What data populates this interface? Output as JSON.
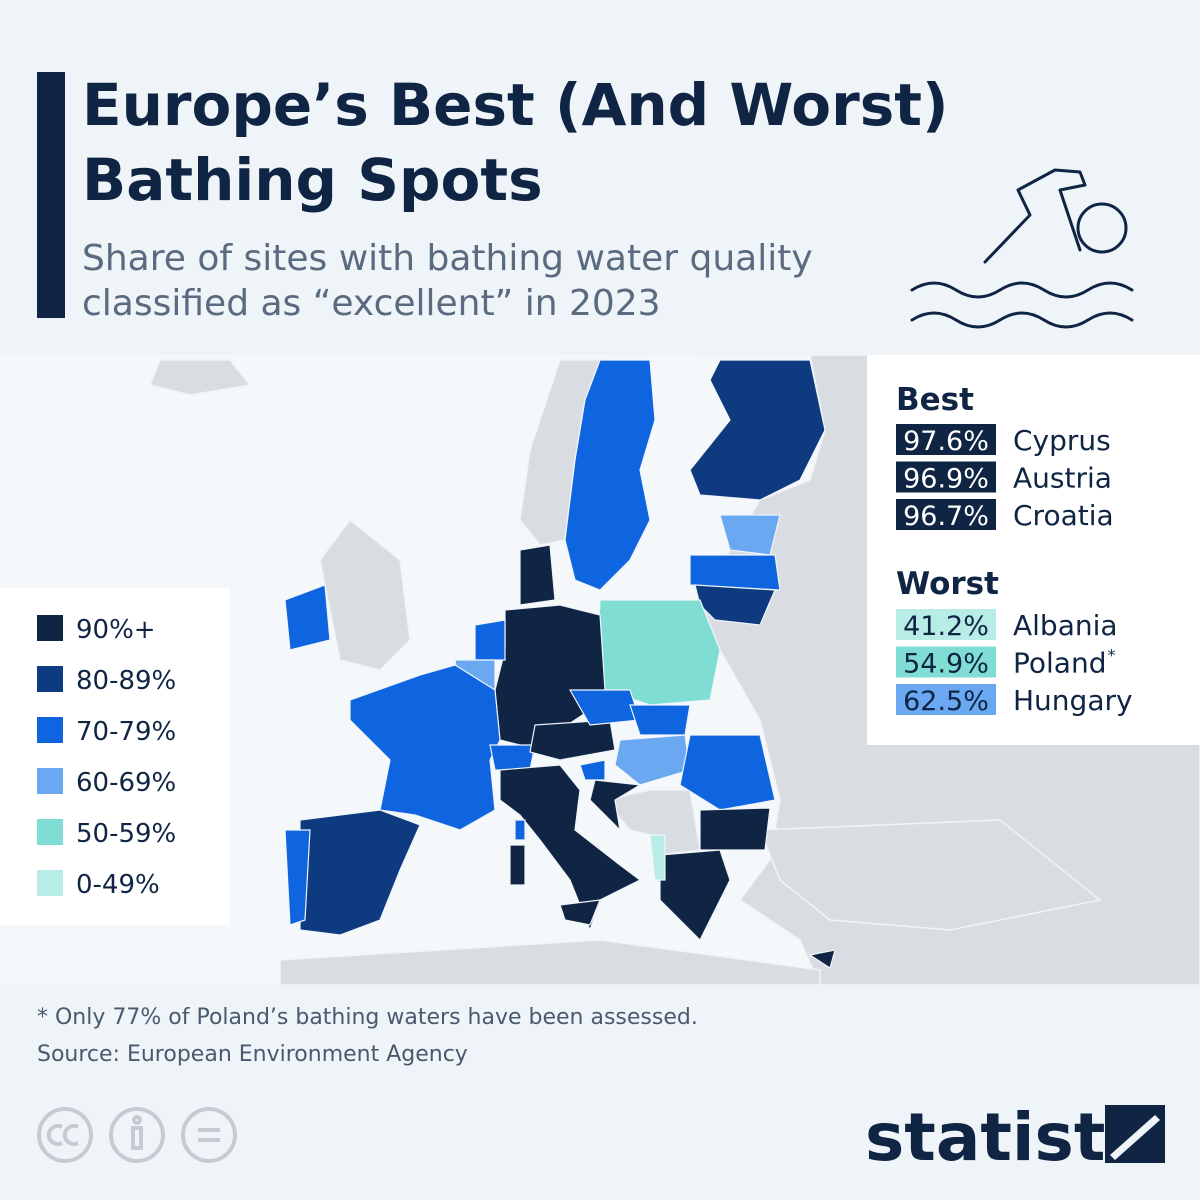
{
  "header": {
    "title_lines": [
      "Europe’s Best (And Worst)",
      "Bathing Spots"
    ],
    "subtitle_lines": [
      "Share of sites with bathing water quality",
      "classified as “excellent” in 2023"
    ]
  },
  "legend": {
    "items": [
      {
        "label": "90%+",
        "color": "#0f2543"
      },
      {
        "label": "80-89%",
        "color": "#0e3a80"
      },
      {
        "label": "70-79%",
        "color": "#0f64e0"
      },
      {
        "label": "60-69%",
        "color": "#6aa9f2"
      },
      {
        "label": "50-59%",
        "color": "#7fddd4"
      },
      {
        "label": "0-49%",
        "color": "#b8ece7"
      }
    ]
  },
  "best": {
    "heading": "Best",
    "rows": [
      {
        "value": "97.6%",
        "country": "Cyprus",
        "badge_color": "#0f2543",
        "text_color": "#ffffff"
      },
      {
        "value": "96.9%",
        "country": "Austria",
        "badge_color": "#0f2543",
        "text_color": "#ffffff"
      },
      {
        "value": "96.7%",
        "country": "Croatia",
        "badge_color": "#0f2543",
        "text_color": "#ffffff"
      }
    ]
  },
  "worst": {
    "heading": "Worst",
    "rows": [
      {
        "value": "41.2%",
        "country": "Albania",
        "badge_color": "#b8ece7",
        "text_color": "#0f2543"
      },
      {
        "value": "54.9%",
        "country": "Poland",
        "mark": "*",
        "badge_color": "#7fddd4",
        "text_color": "#0f2543"
      },
      {
        "value": "62.5%",
        "country": "Hungary",
        "badge_color": "#6aa9f2",
        "text_color": "#0f2543"
      }
    ]
  },
  "footnote": "* Only 77% of Poland’s bathing waters have been assessed.",
  "source": "Source: European Environment Agency",
  "brand": "statista"
}
